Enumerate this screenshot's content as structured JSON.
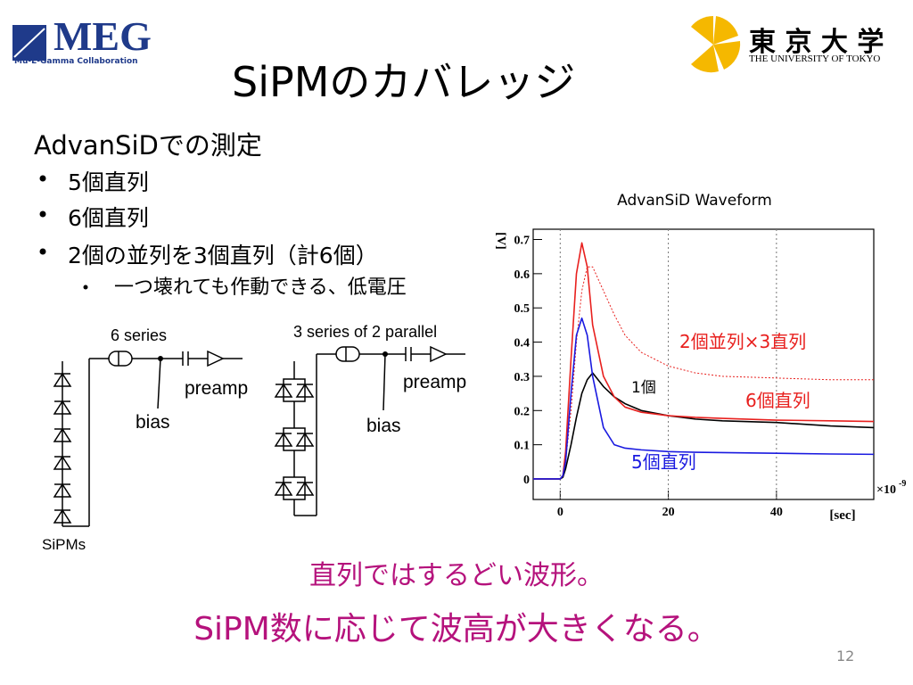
{
  "header": {
    "logo_left": "MEG",
    "logo_left_sub": "Mu-E-Gamma Collaboration",
    "logo_right": "東 京 大 学",
    "logo_right_sub": "THE UNIVERSITY OF TOKYO",
    "title": "SiPMのカバレッジ"
  },
  "body": {
    "heading": "AdvanSiDでの測定",
    "bullets": [
      "5個直列",
      "6個直列",
      "2個の並列を3個直列（計6個）"
    ],
    "sub_bullet": "一つ壊れても作動できる、低電圧"
  },
  "diagram": {
    "left_label": "6 series",
    "right_label": "3 series of 2 parallel",
    "preamp_left": "preamp",
    "preamp_right": "preamp",
    "bias_left": "bias",
    "bias_right": "bias",
    "sipms": "SiPMs"
  },
  "chart_data": {
    "type": "line",
    "title": "AdvanSiD Waveform",
    "y_label": "[V]",
    "x_label": "[sec]",
    "x_multiplier": "×10",
    "x_exponent": "-9",
    "x": [
      -5,
      0,
      0.5,
      1,
      2,
      3,
      4,
      5,
      6,
      8,
      10,
      12,
      15,
      20,
      25,
      30,
      40,
      50,
      58
    ],
    "series": [
      {
        "name": "2個並列×3直列",
        "color": "#e8201e",
        "style": "dotted",
        "values": [
          0,
          0,
          0.01,
          0.05,
          0.2,
          0.4,
          0.55,
          0.62,
          0.62,
          0.55,
          0.48,
          0.42,
          0.37,
          0.33,
          0.31,
          0.3,
          0.295,
          0.29,
          0.29
        ]
      },
      {
        "name": "1個",
        "color": "#000000",
        "style": "solid",
        "values": [
          0,
          0,
          0.005,
          0.03,
          0.1,
          0.18,
          0.25,
          0.29,
          0.31,
          0.27,
          0.24,
          0.22,
          0.2,
          0.185,
          0.175,
          0.17,
          0.165,
          0.155,
          0.15
        ]
      },
      {
        "name": "6個直列",
        "color": "#e8201e",
        "style": "solid",
        "values": [
          0,
          0,
          0.01,
          0.08,
          0.35,
          0.6,
          0.69,
          0.62,
          0.45,
          0.3,
          0.24,
          0.21,
          0.195,
          0.185,
          0.18,
          0.177,
          0.172,
          0.17,
          0.168
        ]
      },
      {
        "name": "5個直列",
        "color": "#1a1ae0",
        "style": "solid",
        "values": [
          0,
          0,
          0.01,
          0.05,
          0.25,
          0.42,
          0.47,
          0.42,
          0.3,
          0.15,
          0.1,
          0.09,
          0.085,
          0.08,
          0.078,
          0.077,
          0.075,
          0.073,
          0.072
        ]
      }
    ],
    "xlim": [
      -5,
      58
    ],
    "ylim": [
      -0.06,
      0.73
    ],
    "xticks": [
      0,
      20,
      40
    ],
    "yticks": [
      0,
      0.1,
      0.2,
      0.3,
      0.4,
      0.5,
      0.6,
      0.7
    ],
    "grid": true
  },
  "conclusion": [
    "直列ではするどい波形。",
    "SiPM数に応じて波高が大きくなる。"
  ],
  "page_number": "12"
}
